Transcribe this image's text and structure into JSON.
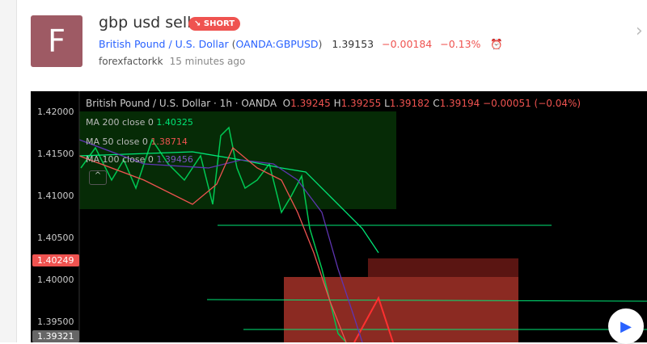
{
  "idea": {
    "avatar_letter": "F",
    "title": "gbp usd sell",
    "badge": "SHORT",
    "badge_icon": "arrow-down-right-icon",
    "symbol_name": "British Pound / U.S. Dollar",
    "symbol_code": "OANDA:GBPUSD",
    "price": "1.39153",
    "change": "−0.00184",
    "change_pct": "−0.13%",
    "author": "forexfactorkk",
    "time": "15 minutes ago"
  },
  "chart": {
    "legend": {
      "title": "British Pound / U.S. Dollar · 1h · OANDA",
      "o_label": "O",
      "o": "1.39245",
      "h_label": "H",
      "h": "1.39255",
      "l_label": "L",
      "l": "1.39182",
      "c_label": "C",
      "c": "1.39194",
      "change": "−0.00051 (−0.04%)"
    },
    "mas": [
      {
        "label": "MA 200 close 0",
        "value": "1.40325",
        "color": "#00e676"
      },
      {
        "label": "MA 50 close 0",
        "value": "1.38714",
        "color": "#ef5350"
      },
      {
        "label": "MA 100 close 0",
        "value": "1.39456",
        "color": "#5e35b1"
      }
    ],
    "price_ticks": [
      "1.42000",
      "1.41500",
      "1.41000",
      "1.40500",
      "1.40000",
      "1.39500"
    ],
    "tag_red": "1.40249",
    "tag_gray": "1.39321",
    "colors": {
      "up": "#00e676",
      "down": "#ef5350",
      "bg": "#000000"
    }
  }
}
